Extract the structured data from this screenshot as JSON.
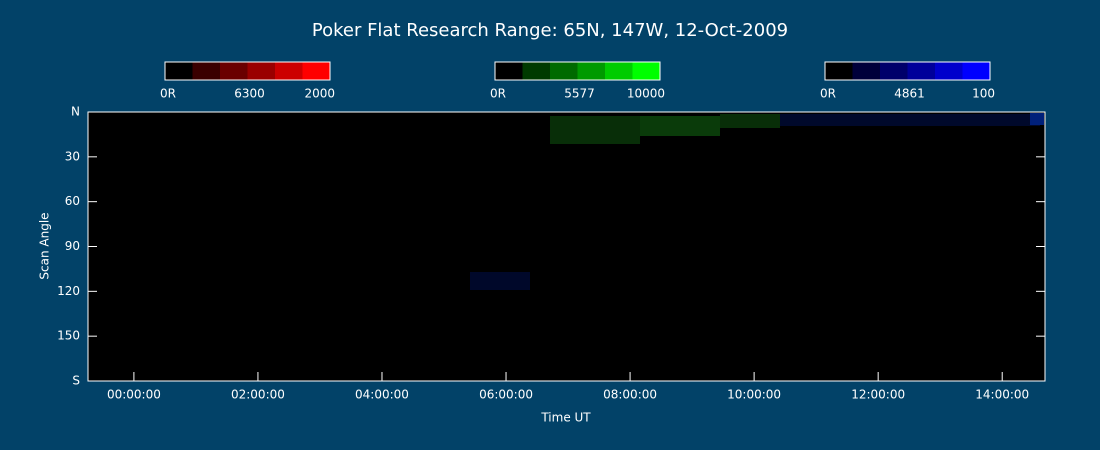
{
  "chart_data": {
    "type": "keogram",
    "title": "Poker Flat Research Range: 65N, 147W, 12-Oct-2009",
    "xlabel": "Time UT",
    "ylabel": "Scan Angle",
    "xlim": [
      -0.74,
      14.69
    ],
    "xticks": [
      {
        "value": 0,
        "label": "00:00:00"
      },
      {
        "value": 2,
        "label": "02:00:00"
      },
      {
        "value": 4,
        "label": "04:00:00"
      },
      {
        "value": 6,
        "label": "06:00:00"
      },
      {
        "value": 8,
        "label": "08:00:00"
      },
      {
        "value": 10,
        "label": "10:00:00"
      },
      {
        "value": 12,
        "label": "12:00:00"
      },
      {
        "value": 14,
        "label": "14:00:00"
      }
    ],
    "ylim": [
      0,
      180
    ],
    "yticks": [
      {
        "value": 0,
        "label": "N"
      },
      30,
      60,
      90,
      120,
      150,
      {
        "value": 180,
        "label": "S"
      }
    ],
    "colorbars": [
      {
        "colors": [
          "#000000",
          "#3a0000",
          "#6a0000",
          "#9a0000",
          "#cc0000",
          "#ff0000"
        ],
        "labels": [
          "0R",
          "6300",
          "2000"
        ]
      },
      {
        "colors": [
          "#000000",
          "#003a00",
          "#006a00",
          "#009a00",
          "#00cc00",
          "#00ff00"
        ],
        "labels": [
          "0R",
          "5577",
          "10000"
        ]
      },
      {
        "colors": [
          "#000000",
          "#00003a",
          "#00006a",
          "#00009a",
          "#0000cc",
          "#0000ff"
        ],
        "labels": [
          "0R",
          "4861",
          "100"
        ]
      }
    ]
  }
}
